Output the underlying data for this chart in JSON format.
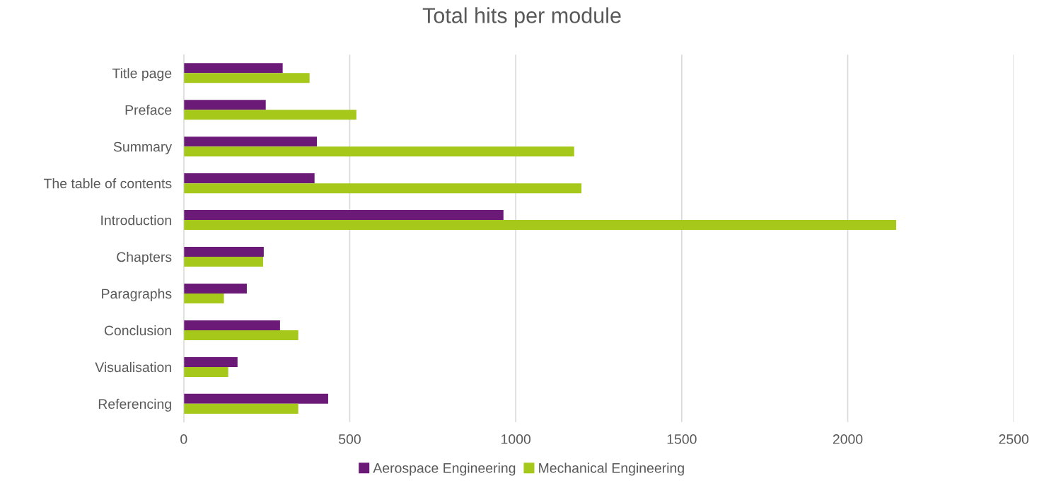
{
  "chart_data": {
    "type": "bar",
    "orientation": "horizontal",
    "title": "Total hits per module",
    "categories": [
      "Title page",
      "Preface",
      "Summary",
      "The table of contents",
      "Introduction",
      "Chapters",
      "Paragraphs",
      "Conclusion",
      "Visualisation",
      "Referencing"
    ],
    "series": [
      {
        "name": "Aerospace Engineering",
        "color": "#6c1a78",
        "values": [
          298,
          247,
          401,
          394,
          963,
          241,
          190,
          290,
          162,
          435
        ]
      },
      {
        "name": "Mechanical Engineering",
        "color": "#a5c81a",
        "values": [
          379,
          520,
          1176,
          1198,
          2146,
          239,
          121,
          345,
          134,
          345
        ]
      }
    ],
    "xlim": [
      0,
      2500
    ],
    "xticks": [
      0,
      500,
      1000,
      1500,
      2000,
      2500
    ],
    "grid": "x",
    "legend": "bottom"
  }
}
